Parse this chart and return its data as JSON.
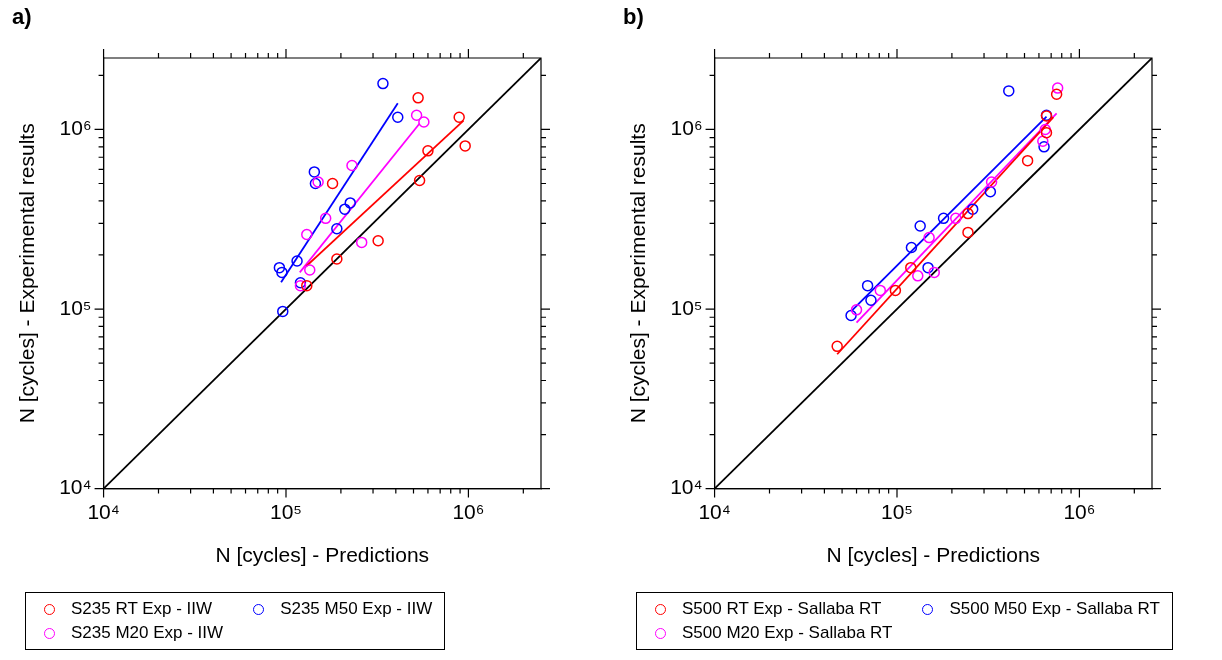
{
  "chart_data": [
    {
      "type": "scatter",
      "title": "a)",
      "xlabel": "N [cycles] - Predictions",
      "ylabel": "N [cycles] - Experimental results",
      "log": "xy",
      "grid": false,
      "legend": "bottom",
      "marker": "circle",
      "xlim": [
        10000,
        2500000
      ],
      "ylim": [
        10000,
        2500000
      ],
      "xticks": [
        {
          "value": 10000,
          "label": "10⁴"
        },
        {
          "value": 20000,
          "label": null
        },
        {
          "value": 30000,
          "label": null
        },
        {
          "value": 40000,
          "label": null
        },
        {
          "value": 50000,
          "label": null
        },
        {
          "value": 60000,
          "label": null
        },
        {
          "value": 70000,
          "label": null
        },
        {
          "value": 80000,
          "label": null
        },
        {
          "value": 90000,
          "label": null
        },
        {
          "value": 100000,
          "label": "10⁵"
        },
        {
          "value": 200000,
          "label": null
        },
        {
          "value": 300000,
          "label": null
        },
        {
          "value": 400000,
          "label": null
        },
        {
          "value": 500000,
          "label": null
        },
        {
          "value": 600000,
          "label": null
        },
        {
          "value": 700000,
          "label": null
        },
        {
          "value": 800000,
          "label": null
        },
        {
          "value": 900000,
          "label": null
        },
        {
          "value": 1000000,
          "label": "10⁶"
        },
        {
          "value": 2000000,
          "label": null
        }
      ],
      "yticks": [
        {
          "value": 10000,
          "label": "10⁴"
        },
        {
          "value": 20000,
          "label": null
        },
        {
          "value": 30000,
          "label": null
        },
        {
          "value": 40000,
          "label": null
        },
        {
          "value": 50000,
          "label": null
        },
        {
          "value": 60000,
          "label": null
        },
        {
          "value": 70000,
          "label": null
        },
        {
          "value": 80000,
          "label": null
        },
        {
          "value": 90000,
          "label": null
        },
        {
          "value": 100000,
          "label": "10⁵"
        },
        {
          "value": 200000,
          "label": null
        },
        {
          "value": 300000,
          "label": null
        },
        {
          "value": 400000,
          "label": null
        },
        {
          "value": 500000,
          "label": null
        },
        {
          "value": 600000,
          "label": null
        },
        {
          "value": 700000,
          "label": null
        },
        {
          "value": 800000,
          "label": null
        },
        {
          "value": 900000,
          "label": null
        },
        {
          "value": 1000000,
          "label": "10⁶"
        },
        {
          "value": 2000000,
          "label": null
        }
      ],
      "series": [
        {
          "name": "S235 RT Exp - IIW",
          "color": "#ff0000",
          "x": [
            530000,
            890000,
            960000,
            600000,
            540000,
            180000,
            320000,
            190000,
            130000
          ],
          "values": [
            1500000,
            1170000,
            810000,
            760000,
            520000,
            500000,
            240000,
            190000,
            135000
          ]
        },
        {
          "name": "S235 M20 Exp - IIW",
          "color": "#ff00ff",
          "x": [
            520000,
            570000,
            230000,
            150000,
            165000,
            130000,
            260000,
            135000,
            120000
          ],
          "values": [
            1200000,
            1100000,
            630000,
            510000,
            320000,
            260000,
            235000,
            165000,
            135000
          ]
        },
        {
          "name": "S235 M50 Exp - IIW",
          "color": "#0000ff",
          "x": [
            340000,
            410000,
            143000,
            145000,
            225000,
            210000,
            190000,
            115000,
            92000,
            95000,
            120000,
            96000
          ],
          "values": [
            1800000,
            1170000,
            580000,
            500000,
            390000,
            360000,
            280000,
            185000,
            170000,
            160000,
            140000,
            97000
          ]
        },
        {
          "type": "line",
          "marker": "none",
          "color": "#ff0000",
          "x": [
            129000,
            940000
          ],
          "values": [
            173000,
            1120000
          ]
        },
        {
          "type": "line",
          "marker": "none",
          "color": "#ff00ff",
          "x": [
            119000,
            540000
          ],
          "values": [
            160000,
            1080000
          ]
        },
        {
          "type": "line",
          "marker": "none",
          "color": "#0000ff",
          "x": [
            94000,
            410000
          ],
          "values": [
            141000,
            1400000
          ]
        },
        {
          "type": "line",
          "marker": "none",
          "color": "#000000",
          "x": [
            10000,
            2500000
          ],
          "values": [
            10000,
            2500000
          ]
        }
      ]
    },
    {
      "type": "scatter",
      "title": "b)",
      "xlabel": "N [cycles] - Predictions",
      "ylabel": "N [cycles] - Experimental results",
      "log": "xy",
      "grid": false,
      "legend": "bottom",
      "marker": "circle",
      "xlim": [
        10000,
        2500000
      ],
      "ylim": [
        10000,
        2500000
      ],
      "xticks": [
        {
          "value": 10000,
          "label": "10⁴"
        },
        {
          "value": 20000,
          "label": null
        },
        {
          "value": 30000,
          "label": null
        },
        {
          "value": 40000,
          "label": null
        },
        {
          "value": 50000,
          "label": null
        },
        {
          "value": 60000,
          "label": null
        },
        {
          "value": 70000,
          "label": null
        },
        {
          "value": 80000,
          "label": null
        },
        {
          "value": 90000,
          "label": null
        },
        {
          "value": 100000,
          "label": "10⁵"
        },
        {
          "value": 200000,
          "label": null
        },
        {
          "value": 300000,
          "label": null
        },
        {
          "value": 400000,
          "label": null
        },
        {
          "value": 500000,
          "label": null
        },
        {
          "value": 600000,
          "label": null
        },
        {
          "value": 700000,
          "label": null
        },
        {
          "value": 800000,
          "label": null
        },
        {
          "value": 900000,
          "label": null
        },
        {
          "value": 1000000,
          "label": "10⁶"
        },
        {
          "value": 2000000,
          "label": null
        }
      ],
      "yticks": [
        {
          "value": 10000,
          "label": "10⁴"
        },
        {
          "value": 20000,
          "label": null
        },
        {
          "value": 30000,
          "label": null
        },
        {
          "value": 40000,
          "label": null
        },
        {
          "value": 50000,
          "label": null
        },
        {
          "value": 60000,
          "label": null
        },
        {
          "value": 70000,
          "label": null
        },
        {
          "value": 80000,
          "label": null
        },
        {
          "value": 90000,
          "label": null
        },
        {
          "value": 100000,
          "label": "10⁵"
        },
        {
          "value": 200000,
          "label": null
        },
        {
          "value": 300000,
          "label": null
        },
        {
          "value": 400000,
          "label": null
        },
        {
          "value": 500000,
          "label": null
        },
        {
          "value": 600000,
          "label": null
        },
        {
          "value": 700000,
          "label": null
        },
        {
          "value": 800000,
          "label": null
        },
        {
          "value": 900000,
          "label": null
        },
        {
          "value": 1000000,
          "label": "10⁶"
        },
        {
          "value": 2000000,
          "label": null
        }
      ],
      "series": [
        {
          "name": "S500 RT Exp - Sallaba RT",
          "color": "#ff0000",
          "x": [
            750000,
            660000,
            660000,
            520000,
            245000,
            245000,
            119000,
            98000,
            47000
          ],
          "values": [
            1570000,
            1190000,
            960000,
            670000,
            340000,
            267000,
            170000,
            127000,
            62000
          ]
        },
        {
          "name": "S500 M20 Exp - Sallaba RT",
          "color": "#ff00ff",
          "x": [
            760000,
            650000,
            630000,
            330000,
            210000,
            150000,
            130000,
            160000,
            81000,
            60000
          ],
          "values": [
            1700000,
            1000000,
            860000,
            510000,
            320000,
            250000,
            153000,
            160000,
            127000,
            99000
          ]
        },
        {
          "name": "S500 M50 Exp - Sallaba RT",
          "color": "#0000ff",
          "x": [
            410000,
            660000,
            640000,
            325000,
            260000,
            180000,
            134000,
            120000,
            148000,
            69000,
            72000,
            56000
          ],
          "values": [
            1640000,
            1200000,
            800000,
            450000,
            360000,
            320000,
            290000,
            220000,
            170000,
            135000,
            112000,
            92000
          ]
        },
        {
          "type": "line",
          "marker": "none",
          "color": "#ff0000",
          "x": [
            47000,
            720000
          ],
          "values": [
            56000,
            1170000
          ]
        },
        {
          "type": "line",
          "marker": "none",
          "color": "#ff00ff",
          "x": [
            60000,
            750000
          ],
          "values": [
            84000,
            1230000
          ]
        },
        {
          "type": "line",
          "marker": "none",
          "color": "#0000ff",
          "x": [
            56000,
            660000
          ],
          "values": [
            97000,
            1180000
          ]
        },
        {
          "type": "line",
          "marker": "none",
          "color": "#000000",
          "x": [
            10000,
            2500000
          ],
          "values": [
            10000,
            2500000
          ]
        }
      ]
    }
  ]
}
